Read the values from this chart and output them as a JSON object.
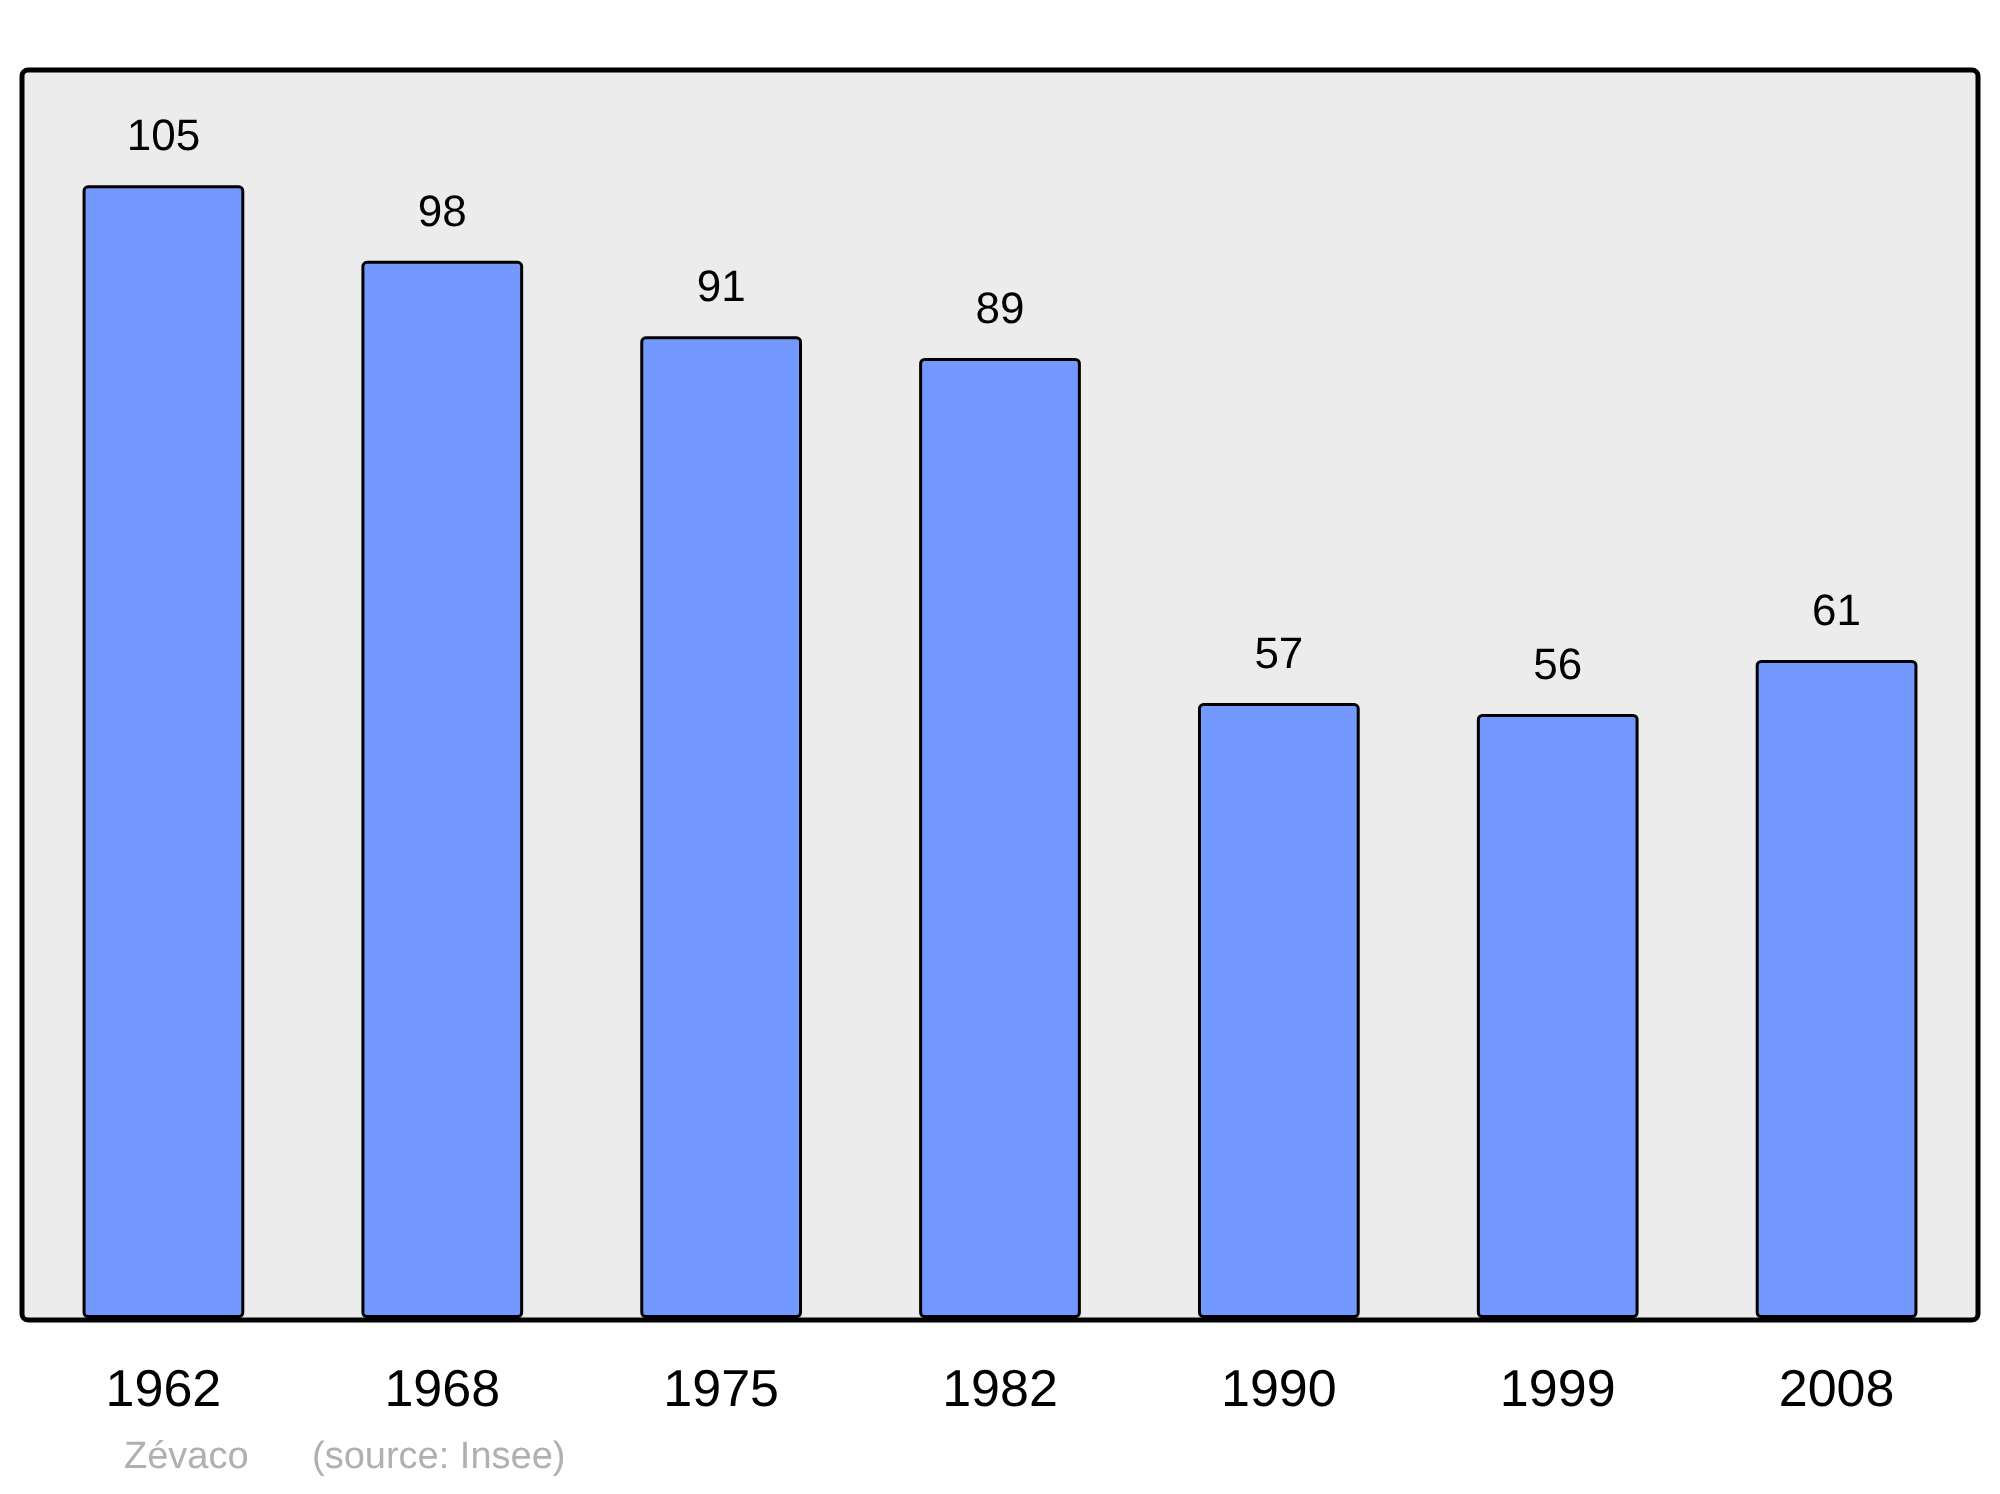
{
  "chart_data": {
    "type": "bar",
    "categories": [
      "1962",
      "1968",
      "1975",
      "1982",
      "1990",
      "1999",
      "2008"
    ],
    "values": [
      105,
      98,
      91,
      89,
      57,
      56,
      61
    ],
    "color": "#7399ff",
    "data_labels": true,
    "annotations": [
      "Zévaco",
      "(source: Insee)"
    ]
  }
}
